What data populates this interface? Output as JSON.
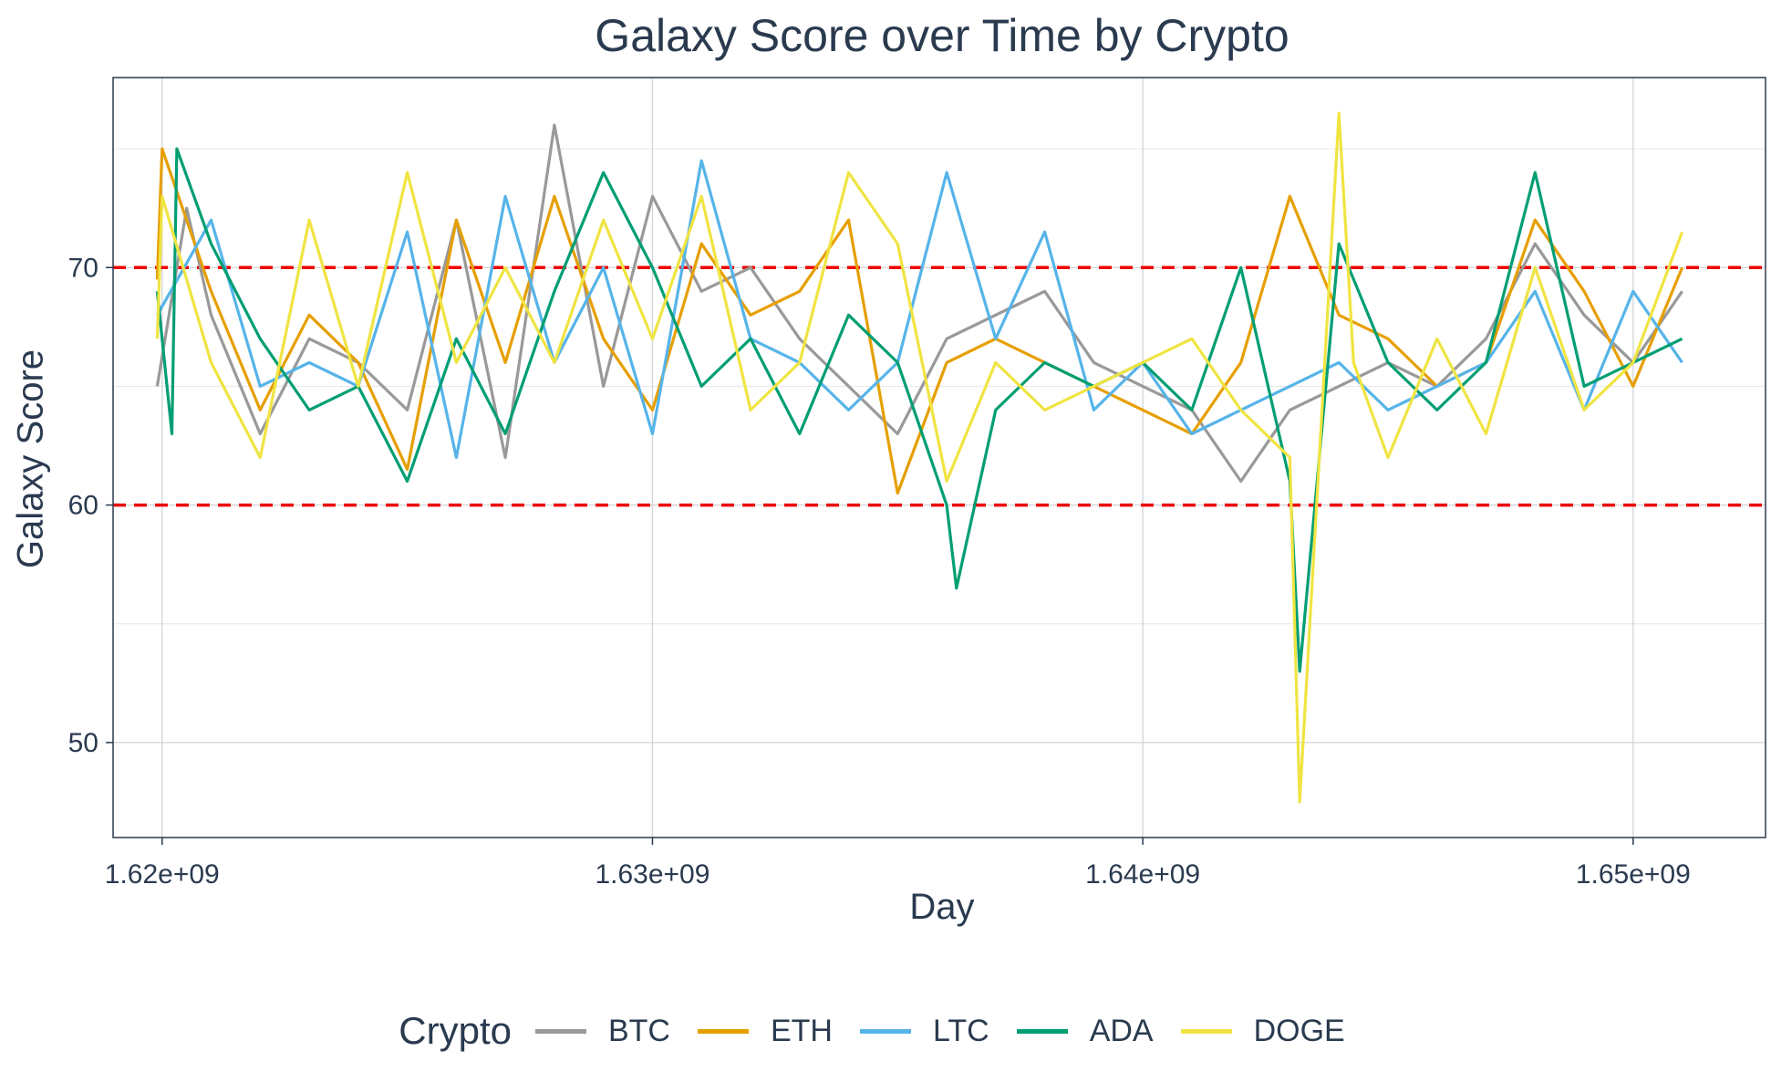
{
  "chart_data": {
    "type": "line",
    "title": "Galaxy Score over Time by Crypto",
    "xlabel": "Day",
    "ylabel": "Galaxy Score",
    "xlim": [
      1619000000,
      1652700000
    ],
    "ylim": [
      46,
      78
    ],
    "x_ticks": [
      1620000000,
      1630000000,
      1640000000,
      1650000000
    ],
    "x_tick_labels": [
      "1.62e+09",
      "1.63e+09",
      "1.64e+09",
      "1.65e+09"
    ],
    "y_ticks": [
      50,
      60,
      70
    ],
    "y_tick_labels": [
      "50",
      "60",
      "70"
    ],
    "grid": true,
    "reference_lines": [
      {
        "y": 70,
        "color": "#ee0000",
        "style": "dashed"
      },
      {
        "y": 60,
        "color": "#ee0000",
        "style": "dashed"
      }
    ],
    "legend": {
      "title": "Crypto",
      "position": "bottom"
    },
    "series": [
      {
        "name": "BTC",
        "color": "#999999",
        "x": [
          1619900000,
          1620500000,
          1621000000,
          1622000000,
          1623000000,
          1624000000,
          1625000000,
          1626000000,
          1627000000,
          1628000000,
          1629000000,
          1630000000,
          1631000000,
          1632000000,
          1633000000,
          1634000000,
          1635000000,
          1636000000,
          1637000000,
          1638000000,
          1639000000,
          1640000000,
          1641000000,
          1642000000,
          1643000000,
          1644000000,
          1645000000,
          1646000000,
          1647000000,
          1648000000,
          1649000000,
          1650000000,
          1651000000
        ],
        "y": [
          65,
          72.5,
          68,
          63,
          67,
          66,
          64,
          72,
          62,
          76,
          65,
          73,
          69,
          70,
          67,
          65,
          63,
          67,
          68,
          69,
          66,
          65,
          64,
          61,
          64,
          65,
          66,
          65,
          67,
          71,
          68,
          66,
          69
        ]
      },
      {
        "name": "ETH",
        "color": "#e69f00",
        "x": [
          1619900000,
          1620000000,
          1621000000,
          1622000000,
          1623000000,
          1624000000,
          1625000000,
          1626000000,
          1627000000,
          1628000000,
          1629000000,
          1630000000,
          1631000000,
          1632000000,
          1633000000,
          1634000000,
          1635000000,
          1636000000,
          1637000000,
          1638000000,
          1639000000,
          1640000000,
          1641000000,
          1642000000,
          1643000000,
          1644000000,
          1645000000,
          1646000000,
          1647000000,
          1648000000,
          1649000000,
          1650000000,
          1651000000
        ],
        "y": [
          69.5,
          75,
          69,
          64,
          68,
          66,
          61.5,
          72,
          66,
          73,
          67,
          64,
          71,
          68,
          69,
          72,
          60.5,
          66,
          67,
          66,
          65,
          64,
          63,
          66,
          73,
          68,
          67,
          65,
          66,
          72,
          69,
          65,
          70
        ]
      },
      {
        "name": "LTC",
        "color": "#56b4e9",
        "x": [
          1619900000,
          1621000000,
          1622000000,
          1623000000,
          1624000000,
          1625000000,
          1626000000,
          1627000000,
          1628000000,
          1629000000,
          1630000000,
          1631000000,
          1632000000,
          1633000000,
          1634000000,
          1635000000,
          1636000000,
          1637000000,
          1638000000,
          1639000000,
          1640000000,
          1641000000,
          1642000000,
          1643000000,
          1644000000,
          1645000000,
          1646000000,
          1647000000,
          1648000000,
          1649000000,
          1650000000,
          1651000000
        ],
        "y": [
          68,
          72,
          65,
          66,
          65,
          71.5,
          62,
          73,
          66,
          70,
          63,
          74.5,
          67,
          66,
          64,
          66,
          74,
          67,
          71.5,
          64,
          66,
          63,
          64,
          65,
          66,
          64,
          65,
          66,
          69,
          64,
          69,
          66
        ]
      },
      {
        "name": "ADA",
        "color": "#009e73",
        "x": [
          1619900000,
          1620200000,
          1620300000,
          1621000000,
          1622000000,
          1623000000,
          1624000000,
          1625000000,
          1626000000,
          1627000000,
          1628000000,
          1629000000,
          1630000000,
          1631000000,
          1632000000,
          1633000000,
          1634000000,
          1635000000,
          1636000000,
          1636200000,
          1637000000,
          1638000000,
          1639000000,
          1640000000,
          1641000000,
          1642000000,
          1643000000,
          1643200000,
          1644000000,
          1645000000,
          1646000000,
          1647000000,
          1648000000,
          1649000000,
          1650000000,
          1651000000
        ],
        "y": [
          69,
          63,
          75,
          71,
          67,
          64,
          65,
          61,
          67,
          63,
          69,
          74,
          70,
          65,
          67,
          63,
          68,
          66,
          60,
          56.5,
          64,
          66,
          65,
          66,
          64,
          70,
          61,
          53,
          71,
          66,
          64,
          66,
          74,
          65,
          66,
          67
        ]
      },
      {
        "name": "DOGE",
        "color": "#f0e442",
        "x": [
          1619900000,
          1620000000,
          1621000000,
          1622000000,
          1623000000,
          1624000000,
          1625000000,
          1626000000,
          1627000000,
          1628000000,
          1629000000,
          1630000000,
          1631000000,
          1632000000,
          1633000000,
          1634000000,
          1635000000,
          1636000000,
          1637000000,
          1638000000,
          1639000000,
          1640000000,
          1641000000,
          1642000000,
          1643000000,
          1643200000,
          1644000000,
          1644300000,
          1645000000,
          1646000000,
          1647000000,
          1648000000,
          1649000000,
          1650000000,
          1651000000
        ],
        "y": [
          67,
          73,
          66,
          62,
          72,
          65,
          74,
          66,
          70,
          66,
          72,
          67,
          73,
          64,
          66,
          74,
          71,
          61,
          66,
          64,
          65,
          66,
          67,
          64,
          62,
          47.5,
          76.5,
          66,
          62,
          67,
          63,
          70,
          64,
          66,
          71.5
        ]
      }
    ]
  }
}
